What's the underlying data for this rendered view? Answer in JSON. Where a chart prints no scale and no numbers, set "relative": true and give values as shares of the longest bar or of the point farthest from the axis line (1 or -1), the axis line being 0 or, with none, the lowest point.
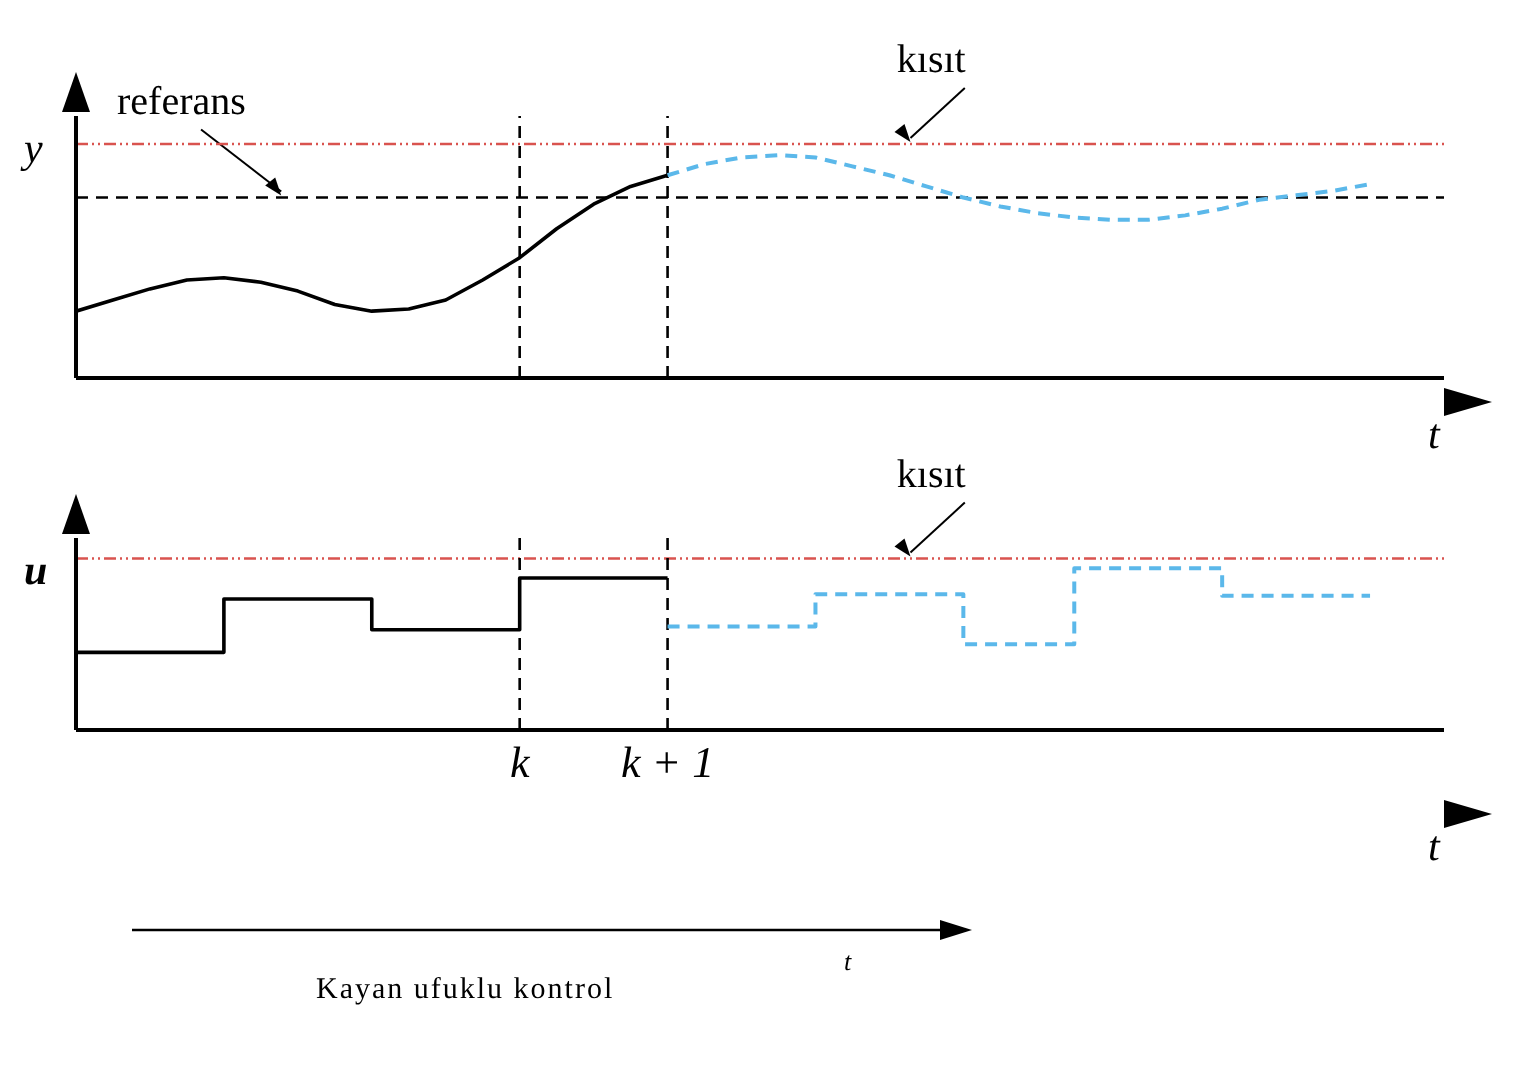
{
  "chart_data": [
    {
      "type": "line",
      "ylabel": "y",
      "xlabel": "t",
      "relative": true,
      "tick_labels": false,
      "marker": "none",
      "categories": [
        null,
        null,
        null,
        null,
        null,
        null,
        null,
        null,
        null,
        null,
        null,
        null,
        "k",
        null,
        null,
        null,
        "k + 1",
        null,
        null,
        null,
        null,
        null,
        null,
        null,
        null,
        null,
        null,
        null,
        null,
        null,
        null,
        null,
        null,
        null,
        null,
        null,
        null,
        null
      ],
      "series": [
        {
          "color": "#000000",
          "line_style": "solid",
          "values": [
            0.3,
            0.35,
            0.4,
            0.44,
            0.45,
            0.43,
            0.39,
            0.33,
            0.3,
            0.31,
            0.35,
            0.44,
            0.54,
            0.67,
            0.78,
            0.86,
            0.91,
            null,
            null,
            null,
            null,
            null,
            null,
            null,
            null,
            null,
            null,
            null,
            null,
            null,
            null,
            null,
            null,
            null,
            null,
            null,
            null,
            null
          ]
        },
        {
          "color": "#5bb8ea",
          "line_style": "dashed",
          "values": [
            null,
            null,
            null,
            null,
            null,
            null,
            null,
            null,
            null,
            null,
            null,
            null,
            null,
            null,
            null,
            null,
            0.91,
            0.96,
            0.99,
            1,
            0.99,
            0.95,
            0.91,
            0.86,
            0.81,
            0.77,
            0.74,
            0.72,
            0.71,
            0.71,
            0.73,
            0.76,
            0.8,
            0.82,
            0.84,
            0.87,
            null,
            null
          ]
        }
      ],
      "ref_lines": [
        {
          "axis": "y",
          "value": 0.81,
          "label": "referans",
          "color": "#000000",
          "line_style": "dashed"
        },
        {
          "axis": "y",
          "value": 1.05,
          "label": "kısıt",
          "color": "#d9534f",
          "line_style": "dotted"
        },
        {
          "axis": "x",
          "value": "k",
          "label": null,
          "color": "#000000",
          "line_style": "dashed"
        },
        {
          "axis": "x",
          "value": "k + 1",
          "label": null,
          "color": "#000000",
          "line_style": "dashed"
        }
      ]
    },
    {
      "type": "step",
      "ylabel": "u",
      "xlabel": "t",
      "relative": true,
      "tick_labels": "x",
      "marker": "none",
      "categories": [
        null,
        null,
        null,
        null,
        null,
        null,
        null,
        null,
        null,
        null,
        null,
        null,
        "k",
        null,
        null,
        null,
        "k + 1",
        null,
        null,
        null,
        null,
        null,
        null,
        null,
        null,
        null,
        null,
        null,
        null,
        null,
        null,
        null,
        null,
        null,
        null,
        null,
        null,
        null
      ],
      "series": [
        {
          "color": "#000000",
          "line_style": "solid",
          "values": [
            0.48,
            0.48,
            0.48,
            0.48,
            0.81,
            0.81,
            0.81,
            0.81,
            0.62,
            0.62,
            0.62,
            0.62,
            0.94,
            0.94,
            0.94,
            0.94,
            0.94,
            null,
            null,
            null,
            null,
            null,
            null,
            null,
            null,
            null,
            null,
            null,
            null,
            null,
            null,
            null,
            null,
            null,
            null,
            null,
            null,
            null
          ]
        },
        {
          "color": "#5bb8ea",
          "line_style": "dashed",
          "values": [
            null,
            null,
            null,
            null,
            null,
            null,
            null,
            null,
            null,
            null,
            null,
            null,
            null,
            null,
            null,
            null,
            0.64,
            0.64,
            0.64,
            0.64,
            0.84,
            0.84,
            0.84,
            0.84,
            0.53,
            0.53,
            0.53,
            1,
            1,
            1,
            1,
            0.83,
            0.83,
            0.83,
            0.83,
            0.83,
            null,
            null
          ]
        }
      ],
      "ref_lines": [
        {
          "axis": "y",
          "value": 1.06,
          "label": "kısıt",
          "color": "#d9534f",
          "line_style": "dotted"
        },
        {
          "axis": "x",
          "value": "k",
          "label": null,
          "color": "#000000",
          "line_style": "dashed"
        },
        {
          "axis": "x",
          "value": "k + 1",
          "label": null,
          "color": "#000000",
          "line_style": "dashed"
        }
      ],
      "annotations": [
        "Kayan ufuklu kontrol",
        "t"
      ]
    }
  ]
}
